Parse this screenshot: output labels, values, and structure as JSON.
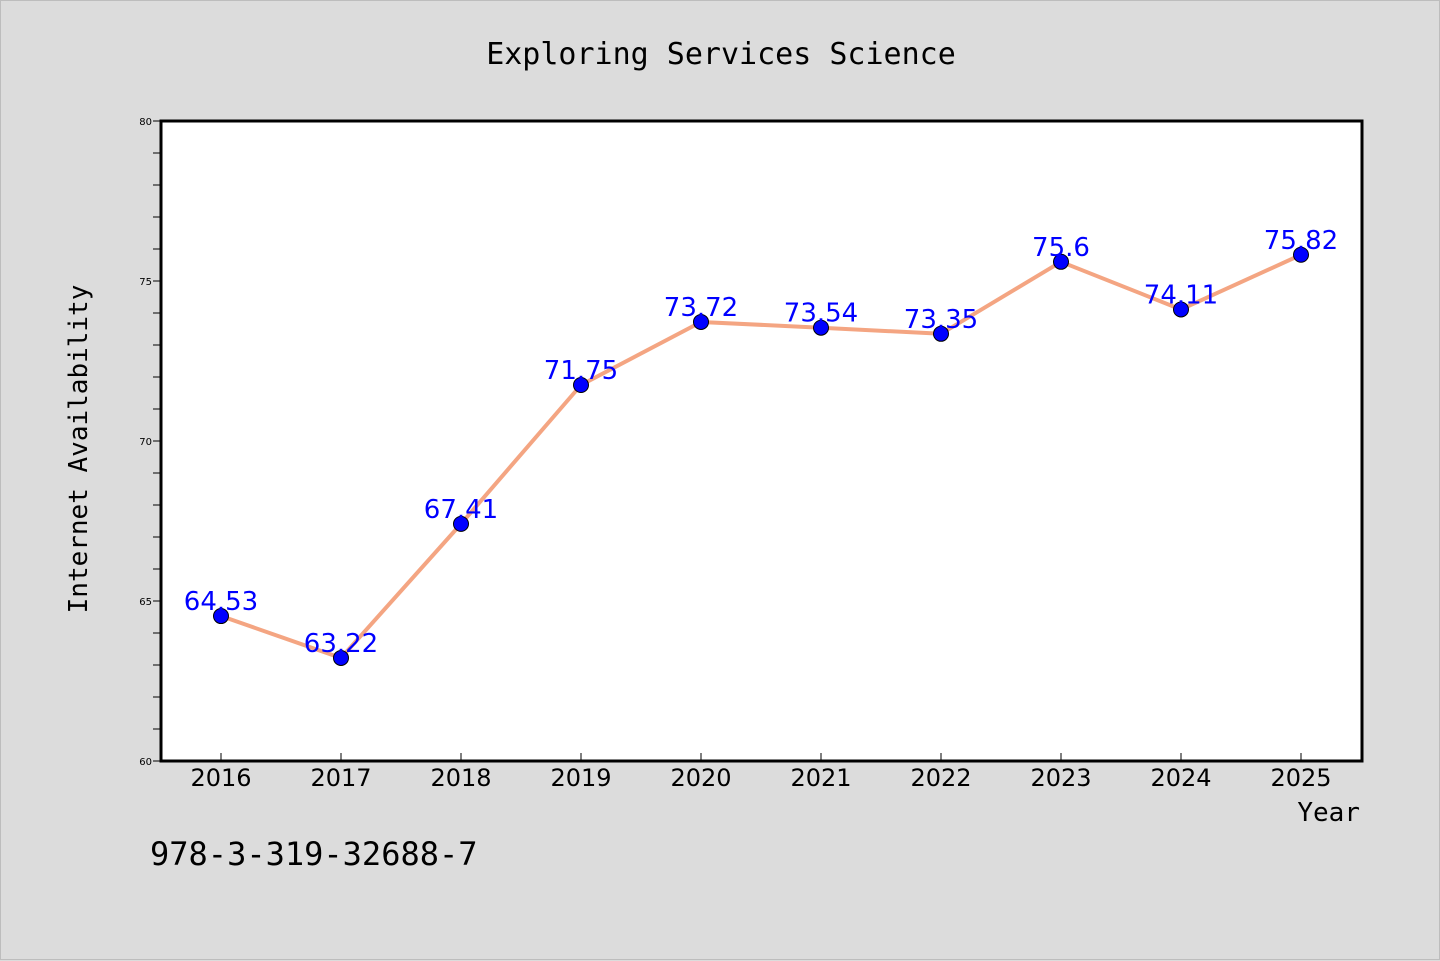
{
  "chart_data": {
    "type": "line",
    "title": "Exploring Services Science",
    "xlabel": "Year",
    "ylabel": "Internet Availability",
    "footer": "978-3-319-32688-7",
    "categories": [
      "2016",
      "2017",
      "2018",
      "2019",
      "2020",
      "2021",
      "2022",
      "2023",
      "2024",
      "2025"
    ],
    "series": [
      {
        "values": [
          64.53,
          63.22,
          67.41,
          71.75,
          73.72,
          73.54,
          73.35,
          75.6,
          74.11,
          75.82
        ],
        "labels": [
          "64.53",
          "63.22",
          "67.41",
          "71.75",
          "73.72",
          "73.54",
          "73.35",
          "75.6",
          "74.11",
          "75.82"
        ]
      }
    ],
    "ylim": [
      60,
      80
    ],
    "yticks": [
      "60",
      "65",
      "70",
      "75",
      "80"
    ],
    "y_minor_step": 1,
    "grid": false,
    "colors": {
      "line": "#f4a582",
      "marker": "#0000ff",
      "data_label": "#0000ff",
      "background": "#dcdcdc",
      "plot_area": "#ffffff"
    }
  }
}
